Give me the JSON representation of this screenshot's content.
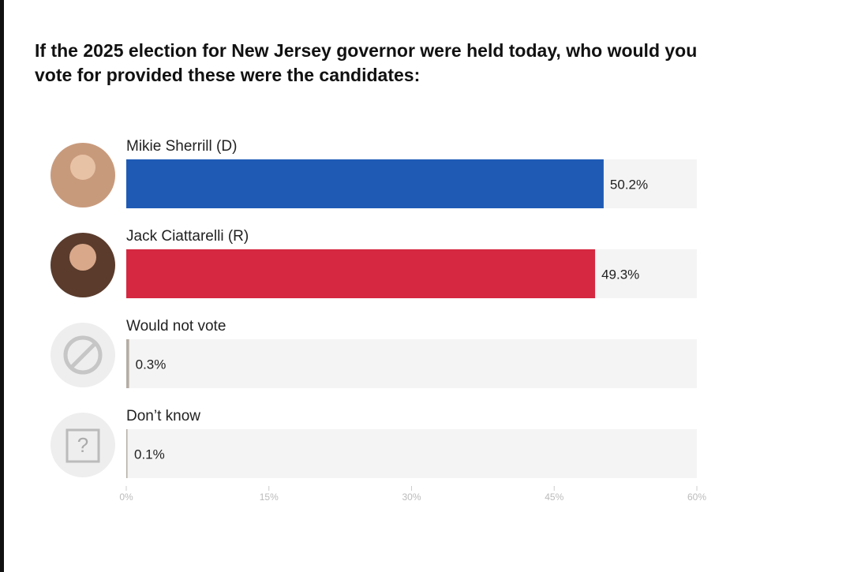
{
  "chart_data": {
    "type": "bar",
    "orientation": "horizontal",
    "title": "If the 2025 election for New Jersey governor were held today, who would you",
    "subtitle": "vote for provided these were the candidates:",
    "categories": [
      "Mikie Sherrill (D)",
      "Jack Ciattarelli (R)",
      "Would not vote",
      "Don’t know"
    ],
    "values": [
      50.2,
      49.3,
      0.3,
      0.1
    ],
    "value_labels": [
      "50.2%",
      "49.3%",
      "0.3%",
      "0.1%"
    ],
    "colors": [
      "#1f5bb5",
      "#d62841",
      "#b5ada5",
      "#b5ada5"
    ],
    "xlim": [
      0,
      60
    ],
    "xticks": [
      {
        "value": 0,
        "label": "0%"
      },
      {
        "value": 15,
        "label": "15%"
      },
      {
        "value": 30,
        "label": "30%"
      },
      {
        "value": 45,
        "label": "45%"
      },
      {
        "value": 60,
        "label": "60%"
      }
    ]
  }
}
